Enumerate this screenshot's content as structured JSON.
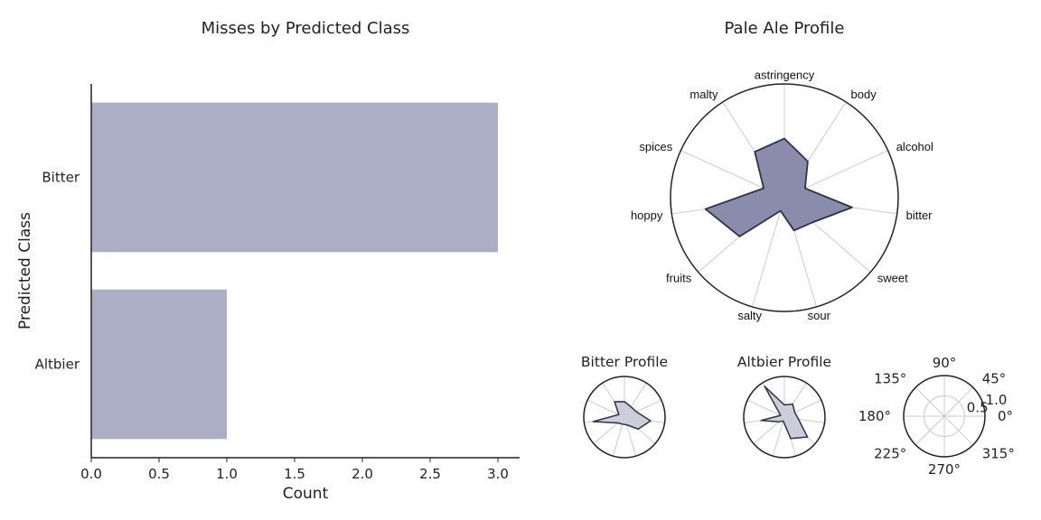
{
  "colors": {
    "bar": "#abaec4",
    "radar_fill_main": "#8a8cab",
    "radar_fill_small": "#cbcdda",
    "radar_line": "#2f3147",
    "grid": "#cccccc",
    "axis": "#222222"
  },
  "chart_data": [
    {
      "type": "bar",
      "orientation": "horizontal",
      "title": "Misses by Predicted Class",
      "categories": [
        "Bitter",
        "Altbier"
      ],
      "values": [
        3,
        1
      ],
      "xlabel": "Count",
      "ylabel": "Predicted Class",
      "xlim": [
        0,
        3.15
      ],
      "xticks": [
        "0.0",
        "0.5",
        "1.0",
        "1.5",
        "2.0",
        "2.5",
        "3.0"
      ]
    },
    {
      "type": "radar",
      "title": "Pale Ale Profile",
      "axes": [
        "astringency",
        "body",
        "alcohol",
        "bitter",
        "sweet",
        "sour",
        "salty",
        "fruits",
        "hoppy",
        "spices",
        "malty"
      ],
      "values": [
        0.52,
        0.38,
        0.2,
        0.6,
        0.33,
        0.3,
        0.12,
        0.52,
        0.7,
        0.2,
        0.48
      ],
      "rmax": 1.0
    },
    {
      "type": "radar",
      "title": "Bitter Profile",
      "axes": [
        "astringency",
        "body",
        "alcohol",
        "bitter",
        "sweet",
        "sour",
        "salty",
        "fruits",
        "hoppy",
        "spices",
        "malty"
      ],
      "values": [
        0.38,
        0.3,
        0.32,
        0.65,
        0.45,
        0.2,
        0.18,
        0.22,
        0.78,
        0.15,
        0.45
      ],
      "rmax": 1.0
    },
    {
      "type": "radar",
      "title": "Altbier Profile",
      "axes": [
        "astringency",
        "body",
        "alcohol",
        "bitter",
        "sweet",
        "sour",
        "salty",
        "fruits",
        "hoppy",
        "spices",
        "malty"
      ],
      "values": [
        0.3,
        0.38,
        0.28,
        0.35,
        0.75,
        0.55,
        0.1,
        0.18,
        0.58,
        0.1,
        0.9
      ],
      "rmax": 1.0
    },
    {
      "type": "polar",
      "title": "",
      "angle_labels": [
        "0°",
        "45°",
        "90°",
        "135°",
        "180°",
        "225°",
        "270°",
        "315°"
      ],
      "radial_labels": [
        "0.5",
        "1.0"
      ],
      "radial_values": [
        0.5,
        1.0
      ],
      "rmax": 1.0
    }
  ]
}
